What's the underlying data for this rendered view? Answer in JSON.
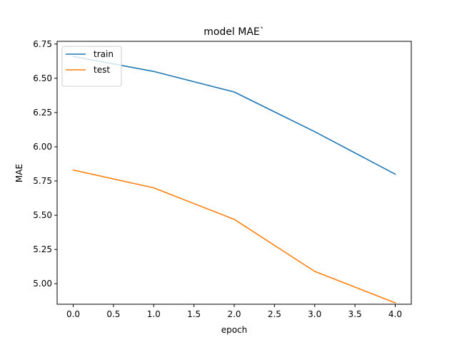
{
  "chart_data": {
    "type": "line",
    "title": "model MAE`",
    "xlabel": "epoch",
    "ylabel": "MAE",
    "x": [
      0,
      1,
      2,
      3,
      4
    ],
    "xlim": [
      -0.2,
      4.2
    ],
    "ylim": [
      4.85,
      6.77
    ],
    "xticks": [
      0.0,
      0.5,
      1.0,
      1.5,
      2.0,
      2.5,
      3.0,
      3.5,
      4.0
    ],
    "xtick_labels": [
      "0.0",
      "0.5",
      "1.0",
      "1.5",
      "2.0",
      "2.5",
      "3.0",
      "3.5",
      "4.0"
    ],
    "yticks": [
      5.0,
      5.25,
      5.5,
      5.75,
      6.0,
      6.25,
      6.5,
      6.75
    ],
    "ytick_labels": [
      "5.00",
      "5.25",
      "5.50",
      "5.75",
      "6.00",
      "6.25",
      "6.50",
      "6.75"
    ],
    "grid": false,
    "legend_position": "top-left",
    "series": [
      {
        "name": "train",
        "color": "#1f77b4",
        "values": [
          6.66,
          6.55,
          6.4,
          6.11,
          5.8
        ]
      },
      {
        "name": "test",
        "color": "#ff7f0e",
        "values": [
          5.83,
          5.7,
          5.47,
          5.09,
          4.86
        ]
      }
    ]
  }
}
